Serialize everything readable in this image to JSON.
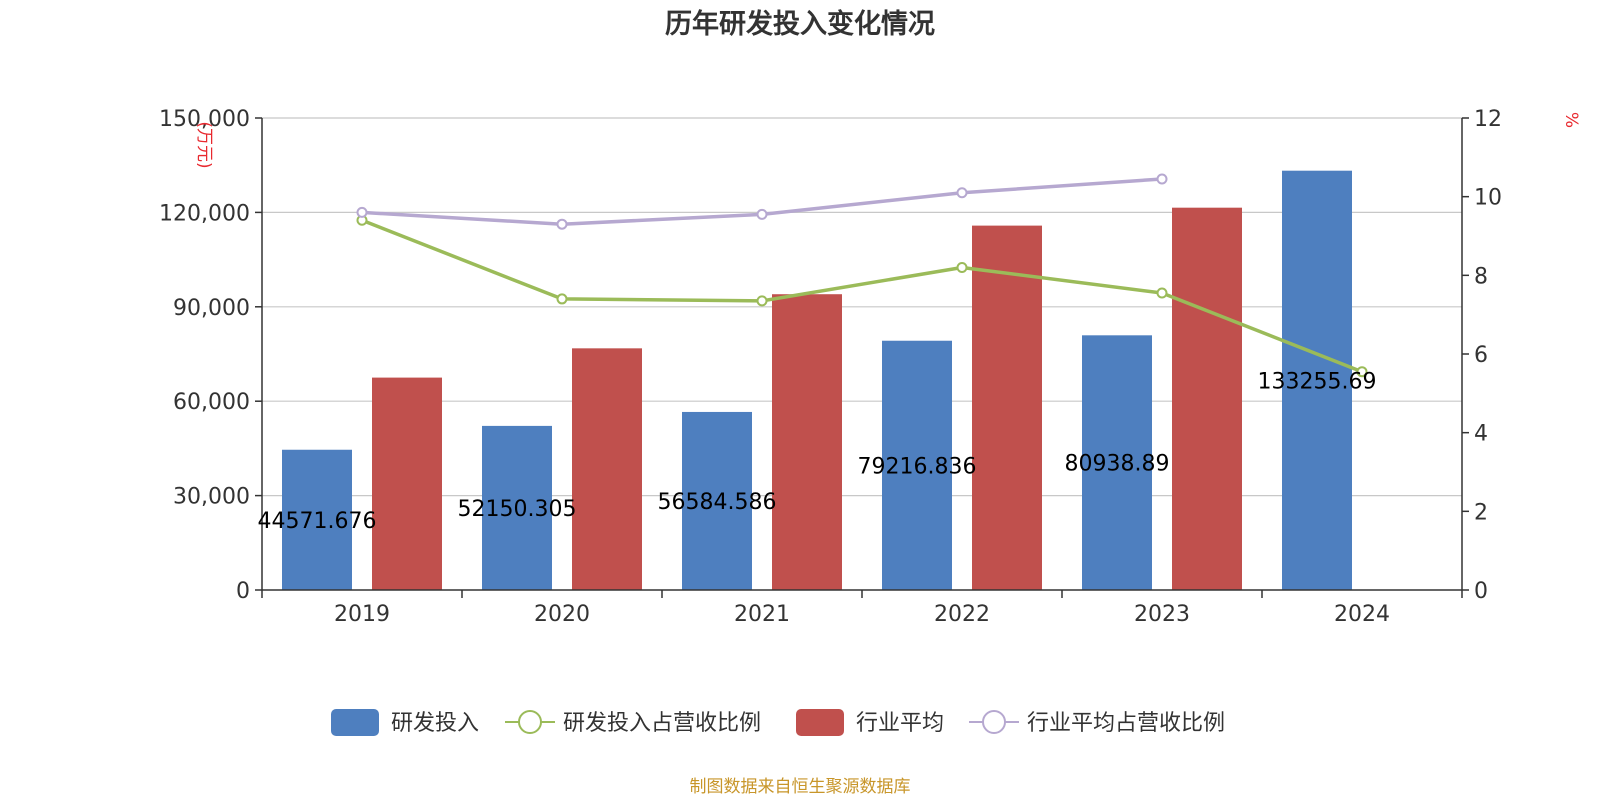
{
  "chart_data": {
    "type": "bar",
    "title": "历年研发投入变化情况",
    "categories": [
      "2019",
      "2020",
      "2021",
      "2022",
      "2023",
      "2024"
    ],
    "left_axis": {
      "unit": "(万元)",
      "ylim": [
        0,
        150000
      ],
      "ticks": [
        0,
        30000,
        60000,
        90000,
        120000,
        150000
      ],
      "tick_labels": [
        "0",
        "30,000",
        "60,000",
        "90,000",
        "120,000",
        "150,000"
      ]
    },
    "right_axis": {
      "unit": "%",
      "ylim": [
        0,
        12
      ],
      "ticks": [
        0,
        2,
        4,
        6,
        8,
        10,
        12
      ],
      "tick_labels": [
        "0",
        "2",
        "4",
        "6",
        "8",
        "10",
        "12"
      ]
    },
    "series": [
      {
        "name": "研发投入",
        "kind": "bar",
        "axis": "left",
        "color": "#4e7fbf",
        "values": [
          44571.676,
          52150.305,
          56584.586,
          79216.836,
          80938.89,
          133255.69
        ],
        "labels": [
          "44571.676",
          "52150.305",
          "56584.586",
          "79216.836",
          "80938.89",
          "133255.69"
        ]
      },
      {
        "name": "研发投入占营收比例",
        "kind": "line",
        "axis": "right",
        "color": "#9bbb59",
        "values": [
          9.4,
          7.4,
          7.35,
          8.2,
          7.55,
          5.55
        ]
      },
      {
        "name": "行业平均",
        "kind": "bar",
        "axis": "left",
        "color": "#c0504d",
        "values": [
          67500,
          76800,
          94000,
          115800,
          121500,
          null
        ]
      },
      {
        "name": "行业平均占营收比例",
        "kind": "line",
        "axis": "right",
        "color": "#b6a8d0",
        "values": [
          9.6,
          9.3,
          9.55,
          10.1,
          10.45,
          null
        ]
      }
    ],
    "grid": true,
    "legend_position": "bottom",
    "source": "制图数据来自恒生聚源数据库"
  }
}
